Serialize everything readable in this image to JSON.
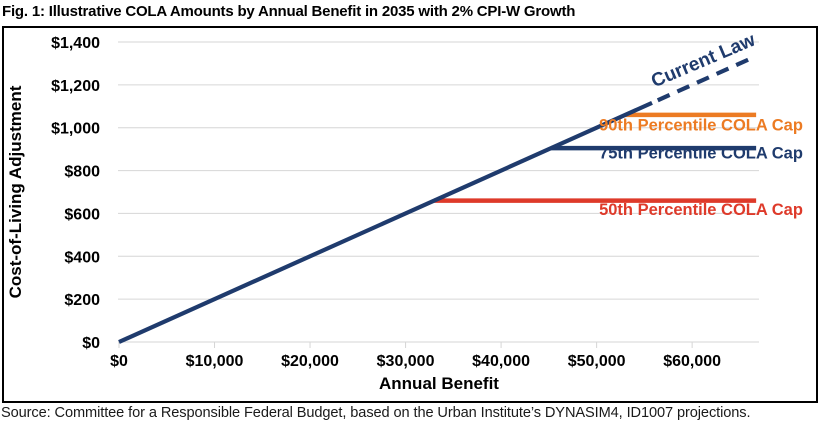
{
  "figure": {
    "title": "Fig. 1: Illustrative COLA Amounts by Annual Benefit in 2035 with 2% CPI-W Growth",
    "source": "Source: Committee for a Responsible Federal Budget, based on the Urban Institute’s DYNASIM4, ID1007 projections."
  },
  "colors": {
    "navy": "#1f3b6d",
    "orange": "#ec7b23",
    "red": "#de3a2a",
    "grid": "#d6d6d6",
    "axis_text": "#000000"
  },
  "chart_data": {
    "type": "line",
    "title": "Fig. 1: Illustrative COLA Amounts by Annual Benefit in 2035 with 2% CPI-W Growth",
    "xlabel": "Annual Benefit",
    "ylabel": "Cost-of-Living Adjustment",
    "xlim": [
      0,
      67000
    ],
    "ylim": [
      0,
      1400
    ],
    "grid": "horizontal",
    "legend": "none (direct line labels)",
    "x_ticks": [
      {
        "v": 0,
        "label": "$0"
      },
      {
        "v": 10000,
        "label": "$10,000"
      },
      {
        "v": 20000,
        "label": "$20,000"
      },
      {
        "v": 30000,
        "label": "$30,000"
      },
      {
        "v": 40000,
        "label": "$40,000"
      },
      {
        "v": 50000,
        "label": "$50,000"
      },
      {
        "v": 60000,
        "label": "$60,000"
      }
    ],
    "y_ticks": [
      {
        "v": 0,
        "label": "$0"
      },
      {
        "v": 200,
        "label": "$200"
      },
      {
        "v": 400,
        "label": "$400"
      },
      {
        "v": 600,
        "label": "$600"
      },
      {
        "v": 800,
        "label": "$800"
      },
      {
        "v": 1000,
        "label": "$1,000"
      },
      {
        "v": 1200,
        "label": "$1,200"
      },
      {
        "v": 1400,
        "label": "$1,400"
      }
    ],
    "series": [
      {
        "name": "50th Percentile COLA Cap",
        "color": "#de3a2a",
        "width": 4.5,
        "dash": null,
        "x": [
          33000,
          66700
        ],
        "y": [
          660,
          660
        ]
      },
      {
        "name": "75th Percentile COLA Cap",
        "color": "#1f3b6d",
        "width": 4.5,
        "dash": null,
        "x": [
          45250,
          66700
        ],
        "y": [
          905,
          905
        ]
      },
      {
        "name": "90th Percentile COLA Cap",
        "color": "#ec7b23",
        "width": 4.5,
        "dash": null,
        "x": [
          53000,
          66700
        ],
        "y": [
          1060,
          1060
        ]
      },
      {
        "name": "Current Law (2% of benefit, solid)",
        "color": "#1f3b6d",
        "width": 4.2,
        "dash": null,
        "x": [
          0,
          55800
        ],
        "y": [
          0,
          1116
        ]
      },
      {
        "name": "Current Law (2% of benefit, projected, dashed)",
        "color": "#1f3b6d",
        "width": 4.2,
        "dash": "13 8.5",
        "x": [
          56400,
          66600
        ],
        "y": [
          1128,
          1332
        ]
      }
    ],
    "annotations": [
      {
        "id": "current-law-label",
        "text": "Current Law",
        "color": "#1f3b6d",
        "x": 61400,
        "y": 1288,
        "rotation": -23,
        "anchor": "middle",
        "size": 19
      },
      {
        "id": "cap-90-label",
        "text": "90th Percentile COLA Cap",
        "color": "#ec7b23",
        "x": 71600,
        "y": 988,
        "rotation": 0,
        "anchor": "end",
        "size": 16.5
      },
      {
        "id": "cap-75-label",
        "text": "75th Percentile COLA Cap",
        "color": "#1f3b6d",
        "x": 71600,
        "y": 856,
        "rotation": 0,
        "anchor": "end",
        "size": 16.5
      },
      {
        "id": "cap-50-label",
        "text": "50th Percentile COLA Cap",
        "color": "#de3a2a",
        "x": 71600,
        "y": 592,
        "rotation": 0,
        "anchor": "end",
        "size": 16.5
      }
    ]
  }
}
